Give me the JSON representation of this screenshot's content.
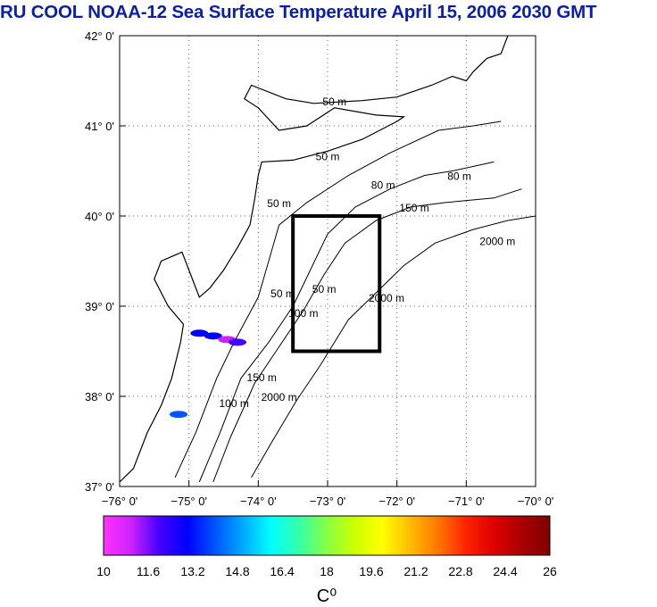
{
  "title": "RU COOL  NOAA-12 Sea Surface Temperature April 15, 2006 2030 GMT",
  "map": {
    "lon_range": [
      -76,
      -70
    ],
    "lat_range": [
      37,
      42
    ],
    "lon_ticks": [
      {
        "value": -76,
        "label": "−76° 0'"
      },
      {
        "value": -75,
        "label": "−75° 0'"
      },
      {
        "value": -74,
        "label": "−74° 0'"
      },
      {
        "value": -73,
        "label": "−73° 0'"
      },
      {
        "value": -72,
        "label": "−72° 0'"
      },
      {
        "value": -71,
        "label": "−71° 0'"
      },
      {
        "value": -70,
        "label": "−70° 0'"
      }
    ],
    "lat_ticks": [
      {
        "value": 42,
        "label": "42° 0'"
      },
      {
        "value": 41,
        "label": "41° 0'"
      },
      {
        "value": 40,
        "label": "40° 0'"
      },
      {
        "value": 39,
        "label": "39° 0'"
      },
      {
        "value": 38,
        "label": "38° 0'"
      },
      {
        "value": 37,
        "label": "37° 0'"
      }
    ],
    "study_box": {
      "lon_min": -73.5,
      "lon_max": -72.25,
      "lat_min": 38.5,
      "lat_max": 40.0
    },
    "coastline": [
      [
        -76,
        37.05
      ],
      [
        -75.8,
        37.2
      ],
      [
        -75.6,
        37.6
      ],
      [
        -75.4,
        37.9
      ],
      [
        -75.25,
        38.2
      ],
      [
        -75.12,
        38.6
      ],
      [
        -75.08,
        38.8
      ],
      [
        -75.3,
        39.0
      ],
      [
        -75.5,
        39.3
      ],
      [
        -75.4,
        39.5
      ],
      [
        -75.1,
        39.6
      ],
      [
        -74.85,
        39.1
      ],
      [
        -74.7,
        39.2
      ],
      [
        -74.5,
        39.4
      ],
      [
        -74.3,
        39.65
      ],
      [
        -74.12,
        39.9
      ],
      [
        -74.05,
        40.2
      ],
      [
        -74.0,
        40.45
      ],
      [
        -73.95,
        40.6
      ],
      [
        -73.5,
        40.62
      ],
      [
        -73.0,
        40.72
      ],
      [
        -72.5,
        40.85
      ],
      [
        -72.0,
        41.05
      ],
      [
        -71.9,
        41.1
      ],
      [
        -72.3,
        41.12
      ],
      [
        -72.9,
        41.2
      ],
      [
        -73.3,
        41.0
      ],
      [
        -73.7,
        40.95
      ],
      [
        -74.0,
        41.2
      ],
      [
        -74.2,
        41.3
      ],
      [
        -74.1,
        41.45
      ],
      [
        -73.6,
        41.3
      ],
      [
        -73.2,
        41.25
      ],
      [
        -72.5,
        41.28
      ],
      [
        -72.0,
        41.32
      ],
      [
        -71.5,
        41.45
      ],
      [
        -71.2,
        41.55
      ],
      [
        -71.0,
        41.5
      ],
      [
        -70.9,
        41.6
      ],
      [
        -70.7,
        41.75
      ],
      [
        -70.5,
        41.8
      ],
      [
        -70.4,
        42.0
      ]
    ],
    "contours": [
      {
        "label": "50 m",
        "label_pos": [
          -73.1,
          41.2
        ],
        "points": [
          [
            -75.2,
            37.1
          ],
          [
            -74.9,
            37.6
          ],
          [
            -74.6,
            38.2
          ],
          [
            -74.35,
            38.6
          ],
          [
            -74.0,
            39.1
          ],
          [
            -73.85,
            39.5
          ],
          [
            -73.7,
            39.9
          ],
          [
            -73.3,
            40.15
          ],
          [
            -72.7,
            40.45
          ],
          [
            -72.1,
            40.7
          ],
          [
            -71.4,
            40.95
          ],
          [
            -70.9,
            41.0
          ],
          [
            -70.5,
            41.05
          ]
        ]
      },
      {
        "label": "80 m",
        "label_pos": [
          -72.3,
          40.3
        ],
        "points": [
          [
            -74.85,
            37.05
          ],
          [
            -74.55,
            37.6
          ],
          [
            -74.25,
            38.2
          ],
          [
            -73.85,
            38.6
          ],
          [
            -73.5,
            39.0
          ],
          [
            -73.25,
            39.4
          ],
          [
            -73.0,
            39.8
          ],
          [
            -72.6,
            40.1
          ],
          [
            -72.1,
            40.3
          ],
          [
            -71.6,
            40.45
          ],
          [
            -71.2,
            40.5
          ],
          [
            -70.6,
            40.6
          ]
        ]
      },
      {
        "label": "150 m",
        "label_pos": [
          -71.7,
          40.1
        ],
        "points": [
          [
            -74.65,
            37.05
          ],
          [
            -74.4,
            37.55
          ],
          [
            -74.05,
            38.15
          ],
          [
            -73.7,
            38.55
          ],
          [
            -73.35,
            38.95
          ],
          [
            -73.05,
            39.35
          ],
          [
            -72.75,
            39.7
          ],
          [
            -72.3,
            39.95
          ],
          [
            -71.8,
            40.1
          ],
          [
            -71.3,
            40.15
          ],
          [
            -70.6,
            40.2
          ],
          [
            -70.2,
            40.3
          ]
        ]
      },
      {
        "label": "2000 m",
        "label_pos": [
          -70.5,
          39.9
        ],
        "points": [
          [
            -74.1,
            37.1
          ],
          [
            -73.8,
            37.5
          ],
          [
            -73.45,
            37.95
          ],
          [
            -73.1,
            38.35
          ],
          [
            -72.7,
            38.85
          ],
          [
            -72.3,
            39.15
          ],
          [
            -71.9,
            39.45
          ],
          [
            -71.45,
            39.7
          ],
          [
            -70.9,
            39.85
          ],
          [
            -70.4,
            39.95
          ],
          [
            -70.0,
            40.0
          ]
        ]
      }
    ],
    "contour_labels": [
      {
        "text": "50 m",
        "lon": -72.9,
        "lat": 41.23
      },
      {
        "text": "50 m",
        "lon": -73.0,
        "lat": 40.62
      },
      {
        "text": "50 m",
        "lon": -73.7,
        "lat": 40.1
      },
      {
        "text": "80 m",
        "lon": -72.2,
        "lat": 40.3
      },
      {
        "text": "80 m",
        "lon": -71.1,
        "lat": 40.4
      },
      {
        "text": "150 m",
        "lon": -71.75,
        "lat": 40.05
      },
      {
        "text": "2000 m",
        "lon": -70.55,
        "lat": 39.68
      },
      {
        "text": "50 m",
        "lon": -73.65,
        "lat": 39.1
      },
      {
        "text": "50 m",
        "lon": -73.05,
        "lat": 39.15
      },
      {
        "text": "100 m",
        "lon": -73.35,
        "lat": 38.88
      },
      {
        "text": "2000 m",
        "lon": -72.15,
        "lat": 39.05
      },
      {
        "text": "150 m",
        "lon": -73.95,
        "lat": 38.17
      },
      {
        "text": "100 m",
        "lon": -74.35,
        "lat": 37.88
      },
      {
        "text": "2000 m",
        "lon": -73.7,
        "lat": 37.95
      }
    ],
    "sst_patches": [
      {
        "lon": -74.85,
        "lat": 38.7,
        "value": 13.2
      },
      {
        "lon": -74.65,
        "lat": 38.67,
        "value": 13.0
      },
      {
        "lon": -74.45,
        "lat": 38.63,
        "value": 11.0
      },
      {
        "lon": -74.3,
        "lat": 38.6,
        "value": 12.2
      },
      {
        "lon": -75.15,
        "lat": 37.8,
        "value": 14.0
      }
    ]
  },
  "colorbar": {
    "min": 10,
    "max": 26,
    "tick_labels": [
      "10",
      "11.6",
      "13.2",
      "14.8",
      "16.4",
      "18",
      "19.6",
      "21.2",
      "22.8",
      "24.4",
      "26"
    ],
    "unit_label": "C⁰",
    "colors": [
      "#ff33ff",
      "#cc22ff",
      "#4400ff",
      "#0000ff",
      "#0055ff",
      "#00aaff",
      "#00ffff",
      "#33ffaa",
      "#88ff44",
      "#ccff00",
      "#ffff00",
      "#ffbb00",
      "#ff7700",
      "#ff2200",
      "#dd0000",
      "#aa0000",
      "#800000"
    ]
  }
}
